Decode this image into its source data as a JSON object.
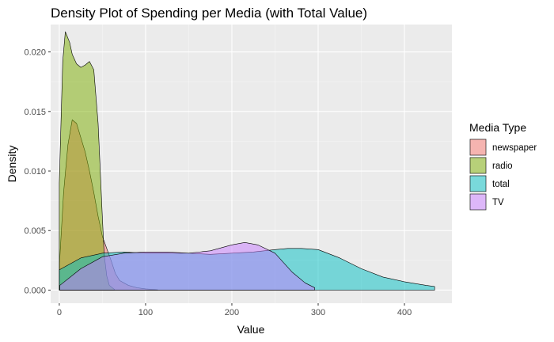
{
  "chart_data": {
    "type": "area",
    "subtype": "density",
    "title": "Density Plot of Spending per Media (with Total Value)",
    "xlabel": "Value",
    "ylabel": "Density",
    "xlim": [
      -10,
      455
    ],
    "ylim": [
      -0.0011,
      0.0223
    ],
    "x_ticks": [
      0,
      100,
      200,
      300,
      400
    ],
    "y_ticks": [
      0.0,
      0.005,
      0.01,
      0.015,
      0.02
    ],
    "y_tick_labels": [
      "0.000",
      "0.005",
      "0.010",
      "0.015",
      "0.020"
    ],
    "grid": true,
    "legend": {
      "title": "Media Type",
      "position": "right"
    },
    "series": [
      {
        "name": "newspaper",
        "color": "#F8766D",
        "points": [
          [
            0.3,
            0.0023
          ],
          [
            5,
            0.0082
          ],
          [
            10,
            0.0122
          ],
          [
            15,
            0.0143
          ],
          [
            20,
            0.014
          ],
          [
            25,
            0.0128
          ],
          [
            30,
            0.0116
          ],
          [
            35,
            0.01
          ],
          [
            40,
            0.0082
          ],
          [
            45,
            0.0062
          ],
          [
            50,
            0.0045
          ],
          [
            55,
            0.0035
          ],
          [
            60,
            0.0025
          ],
          [
            65,
            0.0014
          ],
          [
            70,
            0.0008
          ],
          [
            75,
            0.0006
          ],
          [
            80,
            0.0004
          ],
          [
            85,
            0.0003
          ],
          [
            90,
            0.0002
          ],
          [
            100,
            0.0001
          ],
          [
            114,
            3e-05
          ]
        ]
      },
      {
        "name": "radio",
        "color": "#7CAE00",
        "points": [
          [
            0,
            0.009
          ],
          [
            4,
            0.0192
          ],
          [
            7,
            0.0217
          ],
          [
            12,
            0.0208
          ],
          [
            15,
            0.0198
          ],
          [
            20,
            0.019
          ],
          [
            25,
            0.0187
          ],
          [
            30,
            0.0189
          ],
          [
            35,
            0.0192
          ],
          [
            40,
            0.0185
          ],
          [
            45,
            0.014
          ],
          [
            50,
            0.006
          ],
          [
            52,
            0.003
          ],
          [
            55,
            0.0012
          ],
          [
            58,
            0.0004
          ],
          [
            64,
            5e-05
          ]
        ]
      },
      {
        "name": "total",
        "color": "#00BFC4",
        "points": [
          [
            0,
            0.0017
          ],
          [
            25,
            0.0027
          ],
          [
            50,
            0.0031
          ],
          [
            75,
            0.0032
          ],
          [
            100,
            0.0031
          ],
          [
            125,
            0.0031
          ],
          [
            150,
            0.0031
          ],
          [
            175,
            0.003
          ],
          [
            200,
            0.0031
          ],
          [
            225,
            0.0032
          ],
          [
            250,
            0.0034
          ],
          [
            265,
            0.0035
          ],
          [
            280,
            0.0035
          ],
          [
            300,
            0.0034
          ],
          [
            325,
            0.0027
          ],
          [
            350,
            0.0018
          ],
          [
            375,
            0.0011
          ],
          [
            400,
            0.0007
          ],
          [
            425,
            0.0004
          ],
          [
            435,
            0.0003
          ]
        ]
      },
      {
        "name": "TV",
        "color": "#C77CFF",
        "points": [
          [
            0.7,
            0.0004
          ],
          [
            25,
            0.0018
          ],
          [
            50,
            0.0028
          ],
          [
            75,
            0.0031
          ],
          [
            100,
            0.0032
          ],
          [
            125,
            0.0032
          ],
          [
            150,
            0.0031
          ],
          [
            175,
            0.0033
          ],
          [
            200,
            0.0038
          ],
          [
            215,
            0.004
          ],
          [
            230,
            0.0038
          ],
          [
            250,
            0.0031
          ],
          [
            270,
            0.0015
          ],
          [
            285,
            0.0006
          ],
          [
            296,
            0.0002
          ]
        ]
      }
    ]
  }
}
